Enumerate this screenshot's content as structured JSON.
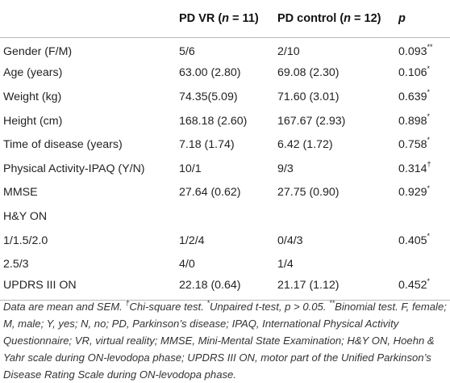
{
  "header": {
    "col1": "",
    "pdvr_prefix": "PD VR (",
    "pdvr_n": "n",
    "pdvr_suffix": " = 11)",
    "pdc_prefix": "PD control (",
    "pdc_n": "n",
    "pdc_suffix": " = 12)",
    "p": "p"
  },
  "rows": [
    {
      "label": "Gender (F/M)",
      "vr": "5/6",
      "control": "2/10",
      "p": "0.093",
      "mark": "**"
    },
    {
      "label": "Age (years)",
      "vr": "63.00 (2.80)",
      "control": "69.08 (2.30)",
      "p": "0.106",
      "mark": "*"
    },
    {
      "label": "Weight (kg)",
      "vr": "74.35(5.09)",
      "control": "71.60 (3.01)",
      "p": "0.639",
      "mark": "*"
    },
    {
      "label": "Height (cm)",
      "vr": "168.18 (2.60)",
      "control": "167.67 (2.93)",
      "p": "0.898",
      "mark": "*"
    },
    {
      "label": "Time of disease (years)",
      "vr": "7.18 (1.74)",
      "control": "6.42 (1.72)",
      "p": "0.758",
      "mark": "*"
    },
    {
      "label": "Physical Activity-IPAQ (Y/N)",
      "vr": "10/1",
      "control": "9/3",
      "p": "0.314",
      "mark": "†"
    },
    {
      "label": "MMSE",
      "vr": "27.64 (0.62)",
      "control": "27.75 (0.90)",
      "p": "0.929",
      "mark": "*"
    },
    {
      "label": "H&Y ON",
      "vr": "",
      "control": "",
      "p": "",
      "mark": ""
    },
    {
      "label": "1/1.5/2.0",
      "vr": "1/2/4",
      "control": "0/4/3",
      "p": "0.405",
      "mark": "*"
    },
    {
      "label": "2.5/3",
      "vr": "4/0",
      "control": "1/4",
      "p": "",
      "mark": ""
    },
    {
      "label": "UPDRS III ON",
      "vr": "22.18 (0.64)",
      "control": "21.17 (1.12)",
      "p": "0.452",
      "mark": "*"
    }
  ],
  "footnote": {
    "a": "Data are mean and SEM. ",
    "dagger": "†",
    "b": "Chi-square test. ",
    "star": "*",
    "c": "Unpaired t-test, p > 0.05. ",
    "dstar": "**",
    "d": "Binomial test. F, female; M, male; Y, yes; N, no; PD, Parkinson’s disease; IPAQ, International Physical Activity Questionnaire; VR, virtual reality; MMSE, Mini-Mental State Examination; H&Y ON, Hoehn & Yahr scale during ON-levodopa phase; UPDRS III ON, motor part of the Unified Parkinson’s Disease Rating Scale during ON-levodopa phase."
  }
}
